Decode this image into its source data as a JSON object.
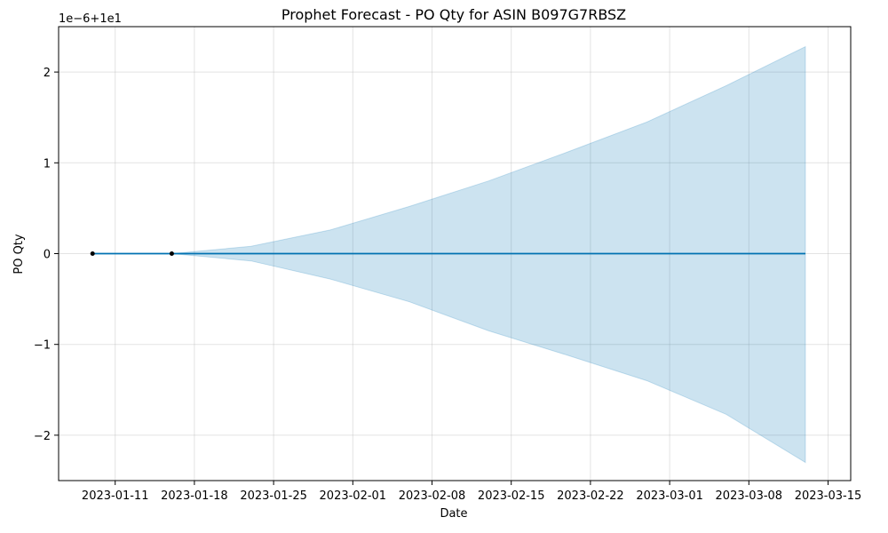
{
  "colors": {
    "band_fill": "#0072B2",
    "band_edge": "#0072B2",
    "forecast_line": "#0072B2",
    "observed_point": "#000000"
  },
  "chart_data": {
    "type": "line",
    "title": "Prophet Forecast - PO Qty for ASIN B097G7RBSZ",
    "xlabel": "Date",
    "ylabel": "PO Qty",
    "y_offset_label": "1e−6+1e1",
    "xlim": [
      "2023-01-06",
      "2023-03-17"
    ],
    "ylim": [
      -2.5,
      2.5
    ],
    "x_ticks": [
      "2023-01-11",
      "2023-01-18",
      "2023-01-25",
      "2023-02-01",
      "2023-02-08",
      "2023-02-15",
      "2023-02-22",
      "2023-03-01",
      "2023-03-08",
      "2023-03-15"
    ],
    "y_ticks": [
      -2,
      -1,
      0,
      1,
      2
    ],
    "y_tick_labels": [
      "−2",
      "−1",
      "0",
      "1",
      "2"
    ],
    "grid": true,
    "series": [
      {
        "kind": "points",
        "x": [
          "2023-01-09",
          "2023-01-16"
        ],
        "y": [
          0,
          0
        ]
      },
      {
        "kind": "line",
        "x": [
          "2023-01-09",
          "2023-01-16",
          "2023-01-23",
          "2023-01-30",
          "2023-02-06",
          "2023-02-13",
          "2023-02-20",
          "2023-02-27",
          "2023-03-06",
          "2023-03-13"
        ],
        "y": [
          0,
          0,
          0,
          0,
          0,
          0,
          0,
          0,
          0,
          0
        ]
      },
      {
        "kind": "band",
        "x": [
          "2023-01-09",
          "2023-01-16",
          "2023-01-23",
          "2023-01-30",
          "2023-02-06",
          "2023-02-13",
          "2023-02-20",
          "2023-02-27",
          "2023-03-06",
          "2023-03-13"
        ],
        "upper": [
          0.0,
          0.0,
          0.08,
          0.26,
          0.52,
          0.8,
          1.12,
          1.45,
          1.85,
          2.28
        ],
        "lower": [
          0.0,
          0.0,
          -0.08,
          -0.28,
          -0.53,
          -0.85,
          -1.12,
          -1.4,
          -1.77,
          -2.3
        ]
      }
    ]
  }
}
